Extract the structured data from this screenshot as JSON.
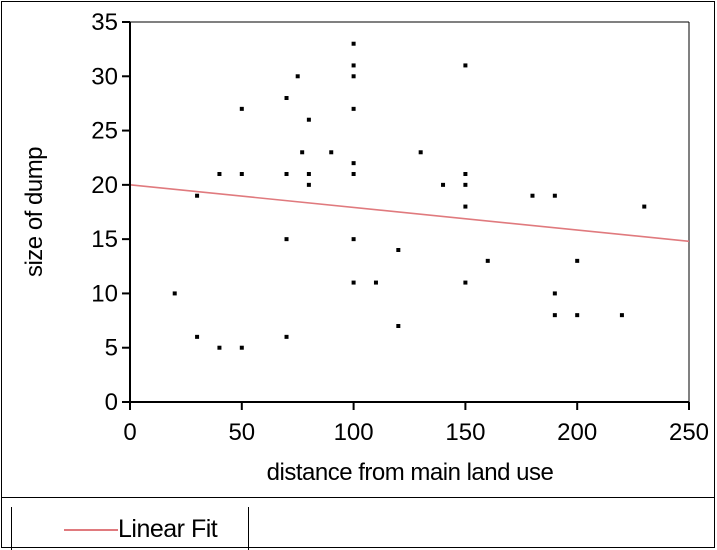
{
  "chart_data": {
    "type": "scatter",
    "xlabel": "distance from main land use",
    "ylabel": "size of dump",
    "xlim": [
      0,
      250
    ],
    "ylim": [
      0,
      35
    ],
    "x_ticks": [
      0,
      50,
      100,
      150,
      200,
      250
    ],
    "y_ticks": [
      0,
      5,
      10,
      15,
      20,
      25,
      30,
      35
    ],
    "grid": false,
    "points": [
      {
        "x": 20,
        "y": 10
      },
      {
        "x": 30,
        "y": 19
      },
      {
        "x": 30,
        "y": 6
      },
      {
        "x": 40,
        "y": 21
      },
      {
        "x": 40,
        "y": 5
      },
      {
        "x": 50,
        "y": 27
      },
      {
        "x": 50,
        "y": 21
      },
      {
        "x": 50,
        "y": 5
      },
      {
        "x": 70,
        "y": 28
      },
      {
        "x": 70,
        "y": 21
      },
      {
        "x": 70,
        "y": 15
      },
      {
        "x": 70,
        "y": 6
      },
      {
        "x": 75,
        "y": 30
      },
      {
        "x": 77,
        "y": 23
      },
      {
        "x": 80,
        "y": 26
      },
      {
        "x": 80,
        "y": 21
      },
      {
        "x": 80,
        "y": 20
      },
      {
        "x": 90,
        "y": 23
      },
      {
        "x": 100,
        "y": 33
      },
      {
        "x": 100,
        "y": 31
      },
      {
        "x": 100,
        "y": 30
      },
      {
        "x": 100,
        "y": 27
      },
      {
        "x": 100,
        "y": 22
      },
      {
        "x": 100,
        "y": 21
      },
      {
        "x": 100,
        "y": 15
      },
      {
        "x": 100,
        "y": 11
      },
      {
        "x": 110,
        "y": 11
      },
      {
        "x": 120,
        "y": 14
      },
      {
        "x": 120,
        "y": 7
      },
      {
        "x": 130,
        "y": 23
      },
      {
        "x": 140,
        "y": 20
      },
      {
        "x": 150,
        "y": 31
      },
      {
        "x": 150,
        "y": 21
      },
      {
        "x": 150,
        "y": 20
      },
      {
        "x": 150,
        "y": 18
      },
      {
        "x": 150,
        "y": 11
      },
      {
        "x": 160,
        "y": 13
      },
      {
        "x": 180,
        "y": 19
      },
      {
        "x": 190,
        "y": 19
      },
      {
        "x": 190,
        "y": 10
      },
      {
        "x": 190,
        "y": 8
      },
      {
        "x": 200,
        "y": 13
      },
      {
        "x": 200,
        "y": 8
      },
      {
        "x": 220,
        "y": 8
      },
      {
        "x": 230,
        "y": 18
      }
    ],
    "fit_line": {
      "name": "Linear Fit",
      "x": [
        0,
        250
      ],
      "y": [
        20,
        14.8
      ],
      "color": "#e07a7e"
    },
    "point_color": "#000000"
  },
  "legend": {
    "label": "Linear Fit"
  }
}
